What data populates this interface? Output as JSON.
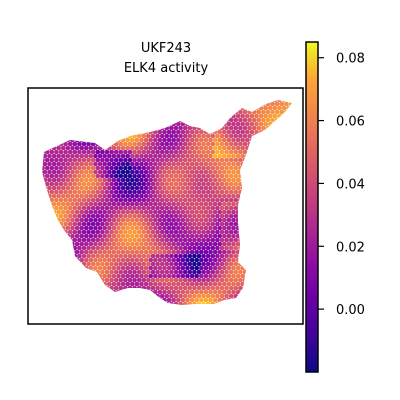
{
  "chart_data": {
    "type": "heatmap",
    "title": "UKF243",
    "subtitle": "ELK4 activity",
    "colormap": "plasma",
    "colorbar": {
      "min": -0.02,
      "max": 0.085,
      "ticks": [
        0.0,
        0.02,
        0.04,
        0.06,
        0.08
      ],
      "tick_labels": [
        "0.00",
        "0.02",
        "0.04",
        "0.06",
        "0.08"
      ]
    },
    "xlabel": "",
    "ylabel": "",
    "grid": false,
    "legend": "colorbar-right",
    "colors": {
      "low": "#0d0887",
      "mid": "#cc4778",
      "high": "#f0f921",
      "frame": "#000000"
    }
  }
}
